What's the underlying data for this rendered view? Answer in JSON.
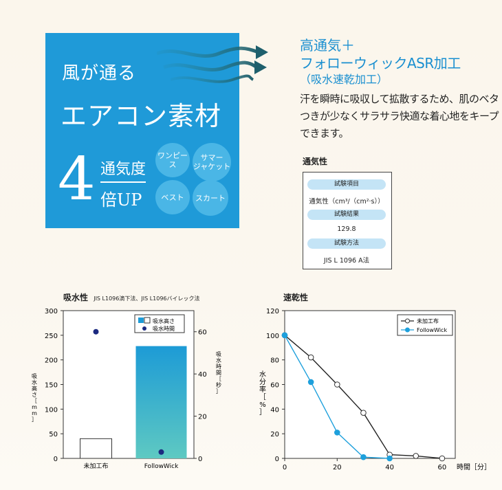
{
  "panel": {
    "line1": "風が通る",
    "line2": "エアコン素材",
    "big_number": "4",
    "text_top": "通気度",
    "text_bottom": "倍UP",
    "bubbles": [
      "ワンピース",
      "サマー\nジャケット",
      "ベスト",
      "スカート"
    ]
  },
  "header": {
    "line1": "高通気＋",
    "line2": "フォローウィックASR加工",
    "line3": "（吸水速乾加工）"
  },
  "description": "汗を瞬時に吸収して拡散するため、肌のベタつきが少なくサラサラ快適な着心地をキープできます。",
  "table": {
    "title": "通気性",
    "h1": "試験項目",
    "v1": "通気性（cm³/（cm²·s））",
    "h2": "試験結果",
    "v2": "129.8",
    "h3": "試験方法",
    "v3": "JIS L 1096 A法"
  },
  "charts_text": {
    "left_title": "吸水性",
    "left_subtitle": "JIS L1096滴下法、JIS L1096バイレック法",
    "right_title": "速乾性"
  },
  "chart_data": [
    {
      "type": "bar",
      "title": "吸水性",
      "categories": [
        "未加工布",
        "FollowWick"
      ],
      "ylabel": "吸水高さ［mm］",
      "ylim": [
        0,
        300
      ],
      "yticks": [
        0,
        50,
        100,
        150,
        200,
        250,
        300
      ],
      "y2label": "吸水時間［秒］",
      "y2lim": [
        0,
        70
      ],
      "y2ticks": [
        0,
        20,
        40,
        60
      ],
      "series": [
        {
          "name": "吸水高さ",
          "kind": "bar",
          "values": [
            40,
            228
          ]
        },
        {
          "name": "吸水時間",
          "kind": "point",
          "axis": "right",
          "values": [
            60,
            3
          ]
        }
      ],
      "legend": "top-right"
    },
    {
      "type": "line",
      "title": "速乾性",
      "xlabel": "時間［分］",
      "ylabel": "水分率［%］",
      "xlim": [
        0,
        65
      ],
      "ylim": [
        0,
        120
      ],
      "xticks": [
        0,
        20,
        40,
        60
      ],
      "yticks": [
        0,
        20,
        40,
        60,
        80,
        100,
        120
      ],
      "series": [
        {
          "name": "未加工布",
          "color": "#222222",
          "marker": "open",
          "x": [
            0,
            10,
            20,
            30,
            40,
            50,
            60
          ],
          "y": [
            100,
            82,
            60,
            37,
            3,
            2,
            0
          ]
        },
        {
          "name": "FollowWick",
          "color": "#1ea0dc",
          "marker": "filled",
          "x": [
            0,
            10,
            20,
            30,
            40
          ],
          "y": [
            100,
            62,
            21,
            1,
            0
          ]
        }
      ],
      "legend": "top-right"
    }
  ],
  "colors": {
    "panel": "#1f9ad8",
    "accent": "#1a8fd0",
    "bar_top": "#1d9bd6",
    "bar_bottom": "#5ec9c2",
    "time_marker": "#1c2a80"
  }
}
